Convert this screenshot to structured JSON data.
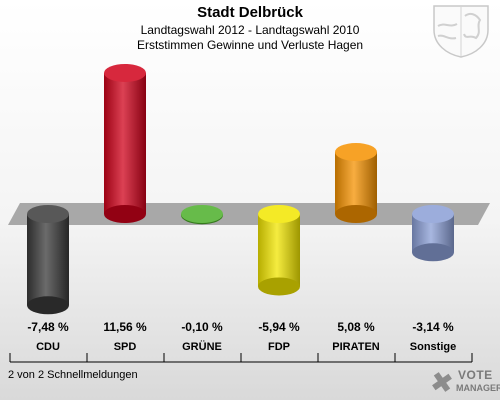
{
  "header": {
    "title": "Stadt Delbrück",
    "subtitle_1": "Landtagswahl 2012 - Landtagswahl 2010",
    "subtitle_2": "Erststimmen Gewinne und Verluste Hagen"
  },
  "footer": {
    "text": "2 von 2 Schnellmeldungen"
  },
  "brand": {
    "logo_line_1": "VOTE",
    "logo_line_2": "MANAGER"
  },
  "chart_data": {
    "type": "bar",
    "title": "Stadt Delbrück",
    "subtitle": "Landtagswahl 2012 - Landtagswahl 2010 / Erststimmen Gewinne und Verluste Hagen",
    "categories": [
      "CDU",
      "SPD",
      "GRÜNE",
      "FDP",
      "PIRATEN",
      "Sonstige"
    ],
    "values": [
      -7.48,
      11.56,
      -0.1,
      -5.94,
      5.08,
      -3.14
    ],
    "value_labels": [
      "-7,48 %",
      "11,56 %",
      "-0,10 %",
      "-5,94 %",
      "5,08 %",
      "-3,14 %"
    ],
    "colors": [
      "#3a3a3a",
      "#d0021b",
      "#4caf2a",
      "#f2e600",
      "#f59200",
      "#8b9fd6"
    ],
    "xlabel": "",
    "ylabel": "",
    "unit": "%",
    "grid": false,
    "legend": "none"
  }
}
